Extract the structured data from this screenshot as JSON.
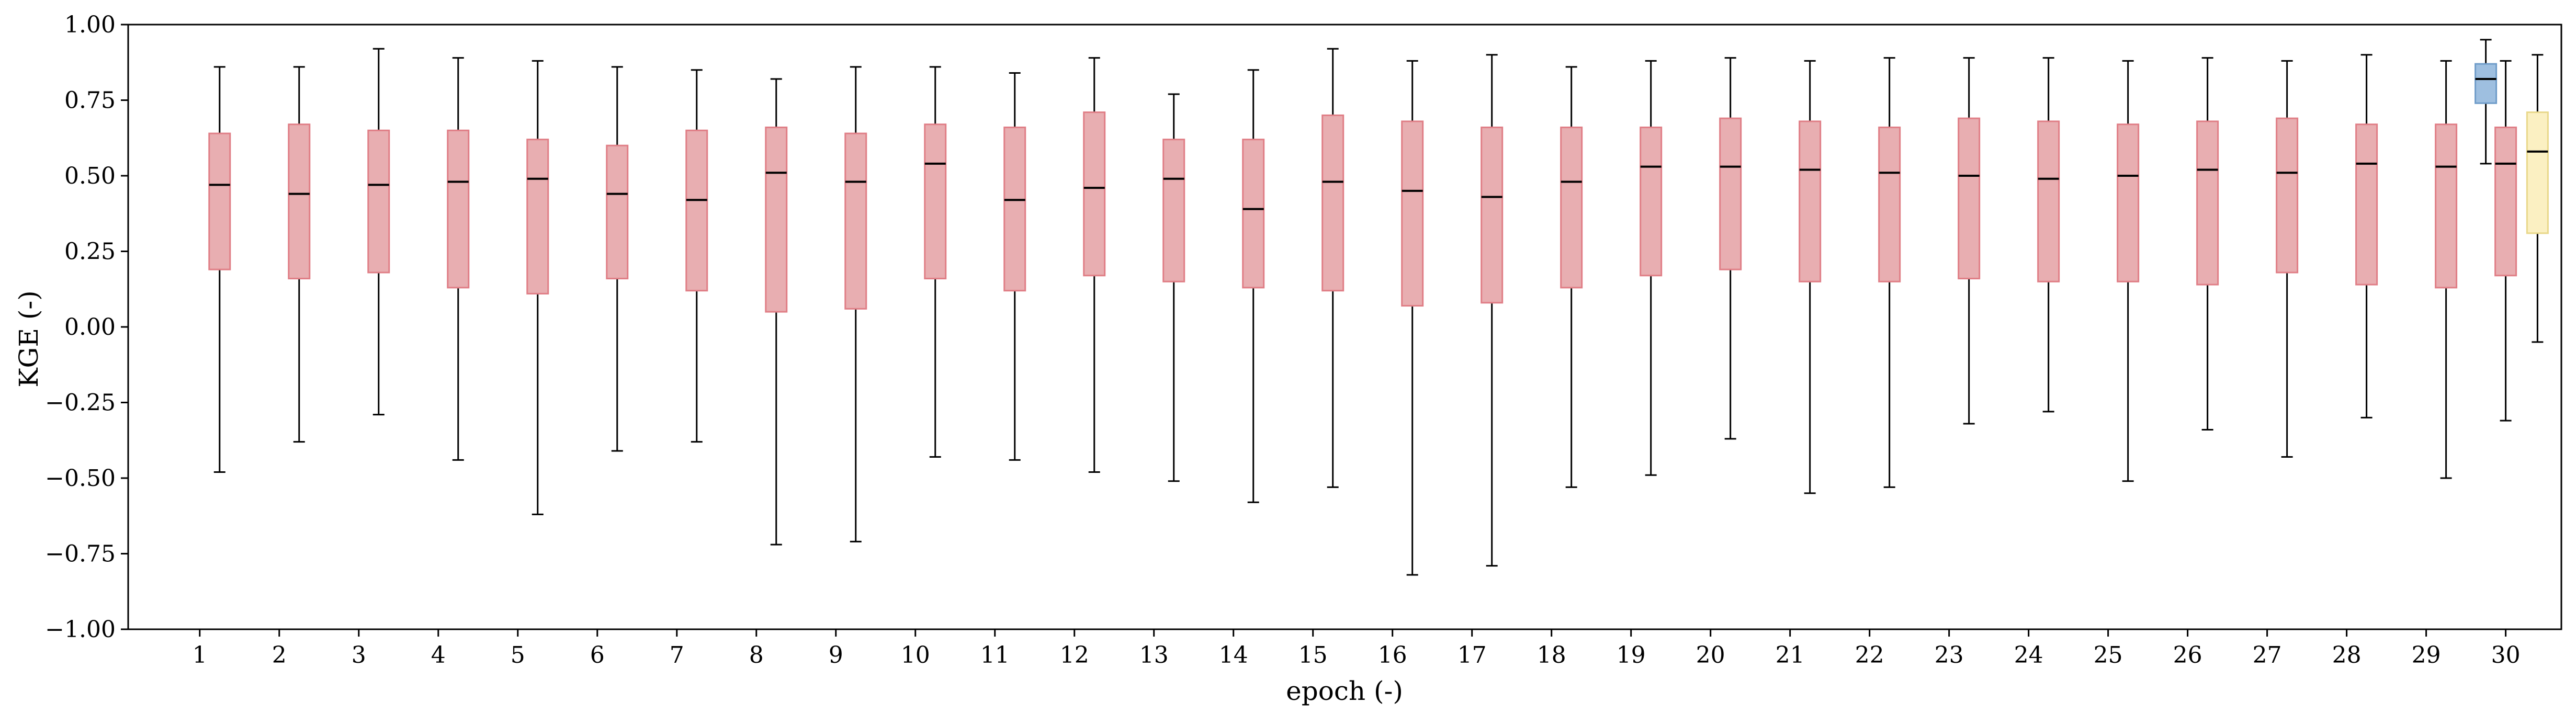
{
  "chart_data": {
    "type": "boxplot",
    "xlabel": "epoch (-)",
    "ylabel": "KGE (-)",
    "ylim": [
      -1.0,
      1.0
    ],
    "yticks": [
      "-1.00",
      "-0.75",
      "-0.50",
      "-0.25",
      "0.00",
      "0.25",
      "0.50",
      "0.75",
      "1.00"
    ],
    "categories": [
      "1",
      "2",
      "3",
      "4",
      "5",
      "6",
      "7",
      "8",
      "9",
      "10",
      "11",
      "12",
      "13",
      "14",
      "15",
      "16",
      "17",
      "18",
      "19",
      "20",
      "21",
      "22",
      "23",
      "24",
      "25",
      "26",
      "27",
      "28",
      "29",
      "30"
    ],
    "colors": {
      "red_fill": "#e8aeb1",
      "red_edge": "#e07e86",
      "blue_fill": "#9ebfe0",
      "blue_edge": "#6f9cc9",
      "yellow_fill": "#fbf0c2",
      "yellow_edge": "#e9d88a"
    },
    "series": [
      {
        "color": "red",
        "boxes": [
          {
            "whislo": -0.48,
            "q1": 0.19,
            "med": 0.47,
            "q3": 0.64,
            "whishi": 0.86
          },
          {
            "whislo": -0.38,
            "q1": 0.16,
            "med": 0.44,
            "q3": 0.67,
            "whishi": 0.86
          },
          {
            "whislo": -0.29,
            "q1": 0.18,
            "med": 0.47,
            "q3": 0.65,
            "whishi": 0.92
          },
          {
            "whislo": -0.44,
            "q1": 0.13,
            "med": 0.48,
            "q3": 0.65,
            "whishi": 0.89
          },
          {
            "whislo": -0.62,
            "q1": 0.11,
            "med": 0.49,
            "q3": 0.62,
            "whishi": 0.88
          },
          {
            "whislo": -0.41,
            "q1": 0.16,
            "med": 0.44,
            "q3": 0.6,
            "whishi": 0.86
          },
          {
            "whislo": -0.38,
            "q1": 0.12,
            "med": 0.42,
            "q3": 0.65,
            "whishi": 0.85
          },
          {
            "whislo": -0.72,
            "q1": 0.05,
            "med": 0.51,
            "q3": 0.66,
            "whishi": 0.82
          },
          {
            "whislo": -0.71,
            "q1": 0.06,
            "med": 0.48,
            "q3": 0.64,
            "whishi": 0.86
          },
          {
            "whislo": -0.43,
            "q1": 0.16,
            "med": 0.54,
            "q3": 0.67,
            "whishi": 0.86
          },
          {
            "whislo": -0.44,
            "q1": 0.12,
            "med": 0.42,
            "q3": 0.66,
            "whishi": 0.84
          },
          {
            "whislo": -0.48,
            "q1": 0.17,
            "med": 0.46,
            "q3": 0.71,
            "whishi": 0.89
          },
          {
            "whislo": -0.51,
            "q1": 0.15,
            "med": 0.49,
            "q3": 0.62,
            "whishi": 0.77
          },
          {
            "whislo": -0.58,
            "q1": 0.13,
            "med": 0.39,
            "q3": 0.62,
            "whishi": 0.85
          },
          {
            "whislo": -0.53,
            "q1": 0.12,
            "med": 0.48,
            "q3": 0.7,
            "whishi": 0.92
          },
          {
            "whislo": -0.82,
            "q1": 0.07,
            "med": 0.45,
            "q3": 0.68,
            "whishi": 0.88
          },
          {
            "whislo": -0.79,
            "q1": 0.08,
            "med": 0.43,
            "q3": 0.66,
            "whishi": 0.9
          },
          {
            "whislo": -0.53,
            "q1": 0.13,
            "med": 0.48,
            "q3": 0.66,
            "whishi": 0.86
          },
          {
            "whislo": -0.49,
            "q1": 0.17,
            "med": 0.53,
            "q3": 0.66,
            "whishi": 0.88
          },
          {
            "whislo": -0.37,
            "q1": 0.19,
            "med": 0.53,
            "q3": 0.69,
            "whishi": 0.89
          },
          {
            "whislo": -0.55,
            "q1": 0.15,
            "med": 0.52,
            "q3": 0.68,
            "whishi": 0.88
          },
          {
            "whislo": -0.53,
            "q1": 0.15,
            "med": 0.51,
            "q3": 0.66,
            "whishi": 0.89
          },
          {
            "whislo": -0.32,
            "q1": 0.16,
            "med": 0.5,
            "q3": 0.69,
            "whishi": 0.89
          },
          {
            "whislo": -0.28,
            "q1": 0.15,
            "med": 0.49,
            "q3": 0.68,
            "whishi": 0.89
          },
          {
            "whislo": -0.51,
            "q1": 0.15,
            "med": 0.5,
            "q3": 0.67,
            "whishi": 0.88
          },
          {
            "whislo": -0.34,
            "q1": 0.14,
            "med": 0.52,
            "q3": 0.68,
            "whishi": 0.89
          },
          {
            "whislo": -0.43,
            "q1": 0.18,
            "med": 0.51,
            "q3": 0.69,
            "whishi": 0.88
          },
          {
            "whislo": -0.3,
            "q1": 0.14,
            "med": 0.54,
            "q3": 0.67,
            "whishi": 0.9
          },
          {
            "whislo": -0.5,
            "q1": 0.13,
            "med": 0.53,
            "q3": 0.67,
            "whishi": 0.88
          },
          {
            "whislo": -0.31,
            "q1": 0.17,
            "med": 0.54,
            "q3": 0.66,
            "whishi": 0.88
          }
        ]
      },
      {
        "color": "blue",
        "boxes": [
          {
            "category": "30",
            "whislo": 0.54,
            "q1": 0.74,
            "med": 0.82,
            "q3": 0.87,
            "whishi": 0.95
          }
        ]
      },
      {
        "color": "yellow",
        "boxes": [
          {
            "category": "30",
            "whislo": -0.05,
            "q1": 0.31,
            "med": 0.58,
            "q3": 0.71,
            "whishi": 0.9
          }
        ]
      }
    ]
  }
}
